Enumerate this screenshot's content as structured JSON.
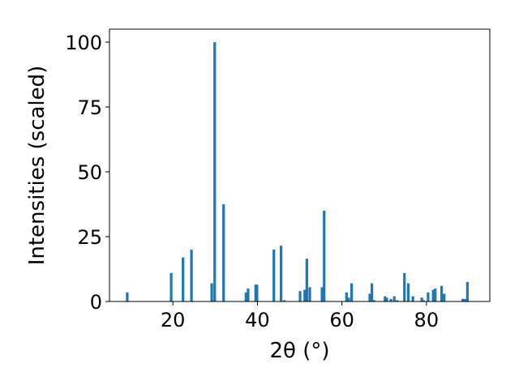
{
  "chart_data": {
    "type": "bar",
    "title": "",
    "xlabel": "2θ (°)",
    "ylabel": "Intensities (scaled)",
    "xlim": [
      5,
      95
    ],
    "ylim": [
      0,
      105
    ],
    "xticks": [
      20,
      40,
      60,
      80
    ],
    "yticks": [
      0,
      25,
      50,
      75,
      100
    ],
    "bar_color": "#1f77b4",
    "grid": false,
    "x": [
      9.2,
      19.6,
      22.4,
      24.4,
      29.2,
      29.9,
      32.0,
      37.3,
      37.8,
      39.6,
      39.9,
      43.9,
      45.6,
      46.4,
      50.1,
      51.2,
      51.7,
      52.4,
      55.3,
      55.8,
      61.1,
      61.6,
      62.3,
      66.6,
      67.1,
      67.6,
      70.2,
      70.6,
      71.6,
      72.4,
      73.1,
      74.8,
      75.7,
      76.8,
      78.9,
      79.3,
      80.4,
      81.6,
      82.1,
      83.6,
      84.2,
      88.6,
      89.2,
      89.7
    ],
    "values": [
      3.5,
      11.0,
      17.0,
      20.0,
      7.0,
      100.0,
      37.5,
      3.5,
      5.0,
      6.5,
      6.5,
      20.0,
      21.5,
      0.5,
      4.0,
      4.5,
      16.5,
      5.5,
      5.5,
      35.0,
      3.5,
      1.5,
      7.0,
      3.0,
      7.0,
      0.5,
      2.0,
      1.5,
      1.0,
      2.0,
      0.5,
      11.0,
      7.0,
      2.0,
      1.5,
      0.5,
      3.5,
      4.5,
      5.0,
      6.0,
      3.0,
      1.0,
      1.0,
      7.5
    ]
  }
}
